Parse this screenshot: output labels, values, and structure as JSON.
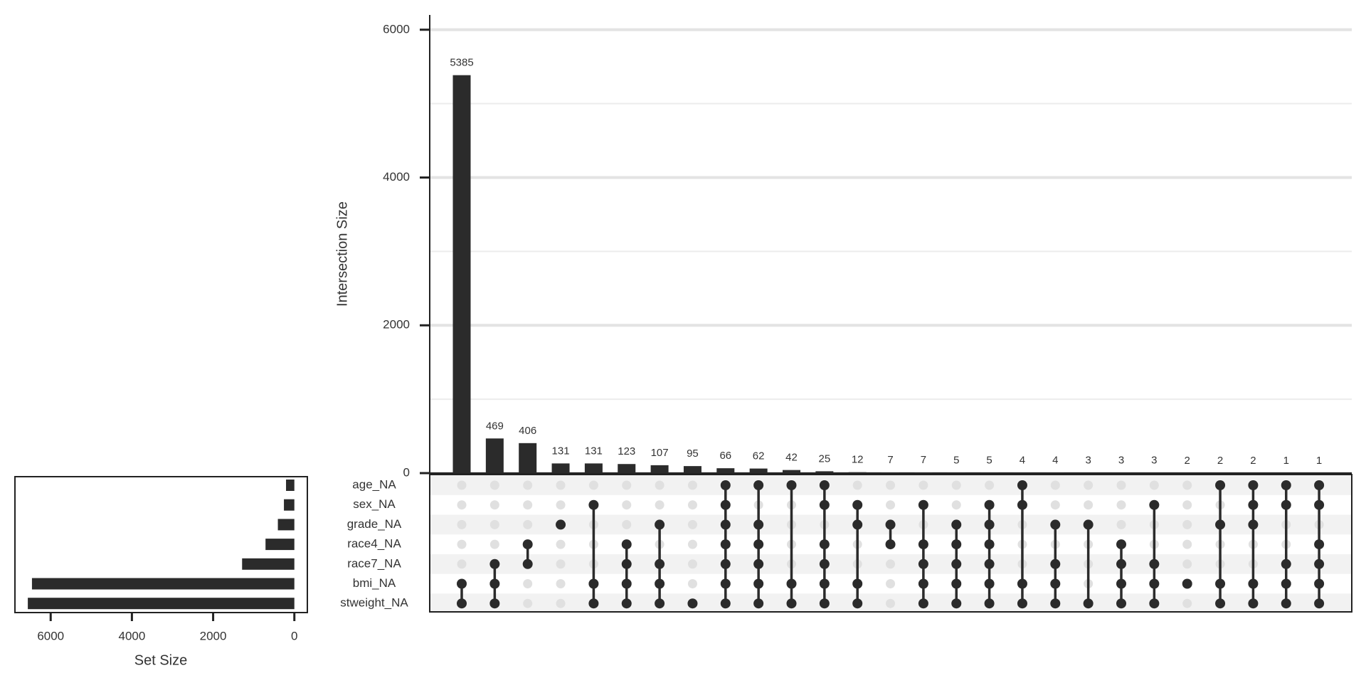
{
  "chart_data": {
    "type": "upset",
    "y_label": "Intersection Size",
    "set_size_label": "Set Size",
    "ylim": [
      0,
      6200
    ],
    "yticks": [
      0,
      2000,
      4000,
      6000
    ],
    "y_minor_grid": [
      1000,
      3000,
      5000
    ],
    "color": "#2b2b2b",
    "intersections": {
      "values": [
        5385,
        469,
        406,
        131,
        131,
        123,
        107,
        95,
        66,
        62,
        42,
        25,
        12,
        7,
        7,
        5,
        5,
        4,
        4,
        3,
        3,
        3,
        2,
        2,
        2,
        1,
        1
      ],
      "members": [
        [
          5,
          6
        ],
        [
          4,
          5,
          6
        ],
        [
          3,
          4
        ],
        [
          2
        ],
        [
          1,
          5,
          6
        ],
        [
          3,
          4,
          5,
          6
        ],
        [
          2,
          4,
          5,
          6
        ],
        [
          6
        ],
        [
          0,
          1,
          2,
          3,
          4,
          5,
          6
        ],
        [
          0,
          2,
          3,
          4,
          5,
          6
        ],
        [
          0,
          5,
          6
        ],
        [
          0,
          1,
          3,
          4,
          5,
          6
        ],
        [
          1,
          2,
          5,
          6
        ],
        [
          2,
          3
        ],
        [
          1,
          3,
          4,
          5,
          6
        ],
        [
          2,
          3,
          4,
          5,
          6
        ],
        [
          1,
          2,
          3,
          4,
          5,
          6
        ],
        [
          0,
          1,
          5,
          6
        ],
        [
          2,
          4,
          5,
          6
        ],
        [
          2,
          6
        ],
        [
          3,
          4,
          5,
          6
        ],
        [
          1,
          4,
          5,
          6
        ],
        [
          5
        ],
        [
          0,
          2,
          5,
          6
        ],
        [
          0,
          1,
          2,
          5,
          6
        ],
        [
          0,
          1,
          4,
          5,
          6
        ],
        [
          0,
          1,
          3,
          4,
          5,
          6
        ]
      ]
    },
    "sets": {
      "names": [
        "age_NA",
        "sex_NA",
        "grade_NA",
        "race4_NA",
        "race7_NA",
        "bmi_NA",
        "stweight_NA"
      ],
      "values": [
        205,
        257,
        406,
        710,
        1287,
        6461,
        6563
      ]
    },
    "set_xlim": [
      6880,
      -320
    ],
    "set_xticks": [
      6000,
      4000,
      2000,
      0
    ]
  }
}
